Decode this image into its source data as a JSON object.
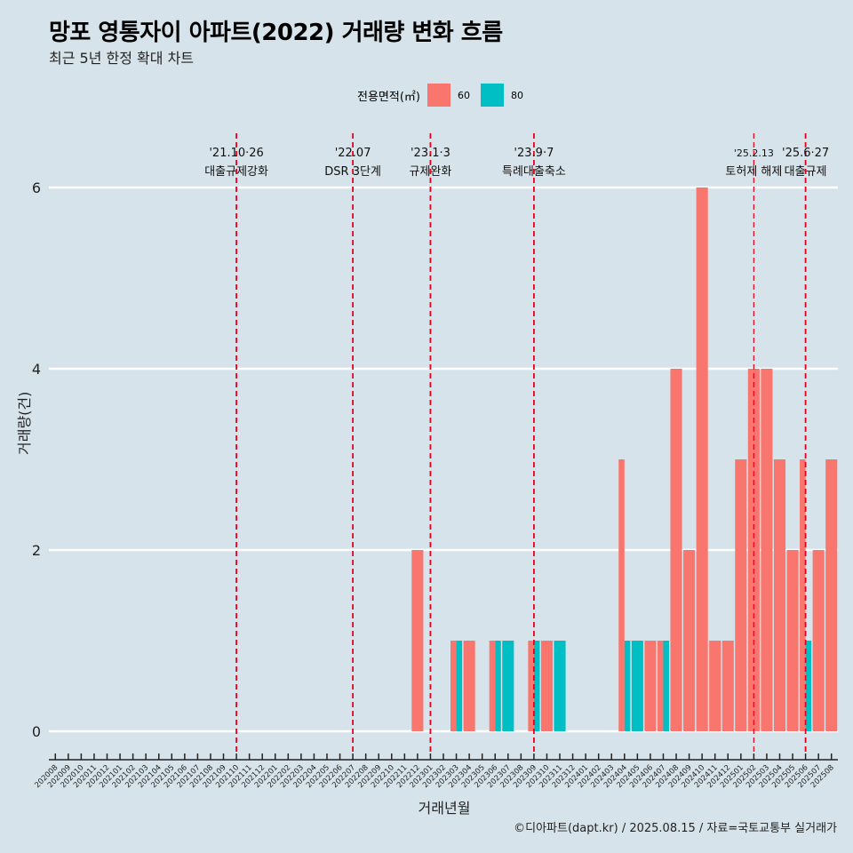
{
  "header": {
    "title": "망포 영통자이 아파트(2022) 거래량 변화 흐름",
    "subtitle": "최근 5년 한정 확대 차트"
  },
  "legend": {
    "title": "전용면적(㎡)",
    "items": [
      {
        "label": "60",
        "color": "#f8766d"
      },
      {
        "label": "80",
        "color": "#00bfc4"
      }
    ]
  },
  "axes": {
    "ylabel": "거래량(건)",
    "xlabel": "거래년월"
  },
  "caption": "©디아파트(dapt.kr) / 2025.08.15 / 자료=국토교통부 실거래가",
  "chart_data": {
    "type": "bar",
    "stacking": "dodge",
    "categories": [
      "202008",
      "202009",
      "202010",
      "202011",
      "202012",
      "202101",
      "202102",
      "202103",
      "202104",
      "202105",
      "202106",
      "202107",
      "202108",
      "202109",
      "202110",
      "202111",
      "202112",
      "202201",
      "202202",
      "202203",
      "202204",
      "202205",
      "202206",
      "202207",
      "202208",
      "202209",
      "202210",
      "202211",
      "202212",
      "202301",
      "202302",
      "202303",
      "202304",
      "202305",
      "202306",
      "202307",
      "202308",
      "202309",
      "202310",
      "202311",
      "202312",
      "202401",
      "202402",
      "202403",
      "202404",
      "202405",
      "202406",
      "202407",
      "202408",
      "202409",
      "202410",
      "202411",
      "202412",
      "202501",
      "202502",
      "202503",
      "202504",
      "202505",
      "202506",
      "202507",
      "202508"
    ],
    "series": [
      {
        "name": "60",
        "color": "#f8766d",
        "values": [
          0,
          0,
          0,
          0,
          0,
          0,
          0,
          0,
          0,
          0,
          0,
          0,
          0,
          0,
          0,
          0,
          0,
          0,
          0,
          0,
          0,
          0,
          0,
          0,
          0,
          0,
          0,
          0,
          2,
          0,
          0,
          1,
          1,
          0,
          1,
          0,
          0,
          1,
          1,
          0,
          0,
          0,
          0,
          0,
          3,
          0,
          1,
          1,
          4,
          2,
          6,
          1,
          1,
          3,
          4,
          4,
          3,
          2,
          3,
          2,
          3
        ]
      },
      {
        "name": "80",
        "color": "#00bfc4",
        "values": [
          0,
          0,
          0,
          0,
          0,
          0,
          0,
          0,
          0,
          0,
          0,
          0,
          0,
          0,
          0,
          0,
          0,
          0,
          0,
          0,
          0,
          0,
          0,
          0,
          0,
          0,
          0,
          0,
          0,
          0,
          0,
          1,
          0,
          0,
          1,
          1,
          0,
          1,
          0,
          1,
          0,
          0,
          0,
          0,
          1,
          1,
          0,
          1,
          0,
          0,
          0,
          0,
          0,
          0,
          0,
          0,
          0,
          0,
          1,
          0,
          0
        ]
      }
    ],
    "ylim": [
      0,
      6
    ],
    "yticks": [
      0,
      2,
      4,
      6
    ],
    "grid": true,
    "legend_position": "top",
    "events": [
      {
        "month": "202110",
        "date": "'21.10·26",
        "label": "대출규제강화"
      },
      {
        "month": "202207",
        "date": "'22.07",
        "label": "DSR 3단계"
      },
      {
        "month": "202301",
        "date": "'23.1·3",
        "label": "규제완화"
      },
      {
        "month": "202309",
        "date": "'23.9·7",
        "label": "특례대출축소"
      },
      {
        "month": "202502",
        "date": "'25.2.13",
        "label": "토허제 해제"
      },
      {
        "month": "202506",
        "date": "'25.6·27",
        "label": "대출규제"
      }
    ]
  }
}
